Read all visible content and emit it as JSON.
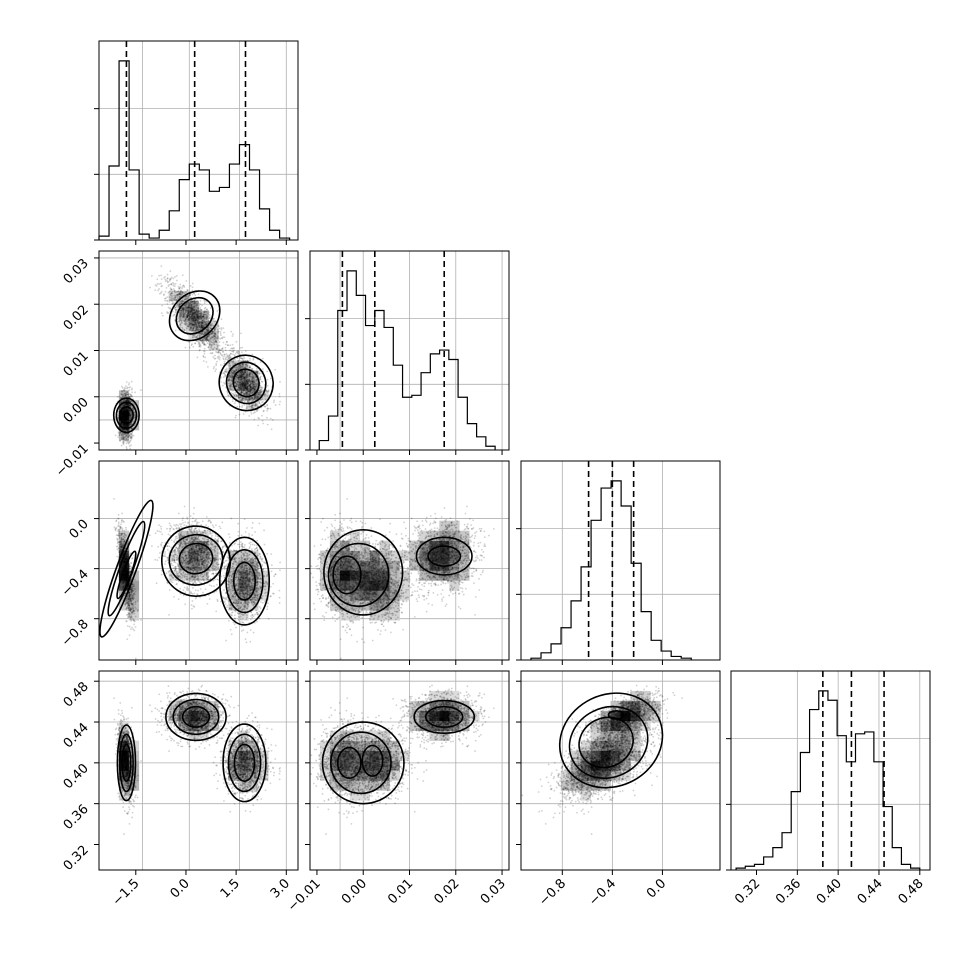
{
  "chart_data": {
    "type": "corner",
    "title": "",
    "parameters": [
      {
        "label": "",
        "range": [
          -2.6,
          3.35
        ],
        "ticks": [
          -1.5,
          0.0,
          1.5,
          3.0
        ],
        "tick_labels": [
          "−1.5",
          "0.0",
          "1.5",
          "3.0"
        ],
        "quantiles": [
          -1.78,
          0.26,
          1.78
        ],
        "histogram": {
          "bin_edges": [
            -2.6,
            -2.3,
            -2.0,
            -1.7,
            -1.4,
            -1.1,
            -0.8,
            -0.5,
            -0.2,
            0.1,
            0.4,
            0.7,
            1.0,
            1.3,
            1.6,
            1.9,
            2.2,
            2.5,
            2.8,
            3.1
          ],
          "counts": [
            0.02,
            0.38,
            0.92,
            0.36,
            0.03,
            0.01,
            0.05,
            0.15,
            0.31,
            0.39,
            0.36,
            0.25,
            0.27,
            0.39,
            0.49,
            0.36,
            0.16,
            0.05,
            0.01
          ]
        },
        "grid_at": [
          -1.3,
          0.1,
          1.6,
          3.0
        ]
      },
      {
        "label": "",
        "range": [
          -0.0115,
          0.0315
        ],
        "ticks": [
          -0.01,
          0.0,
          0.01,
          0.02,
          0.03
        ],
        "tick_labels": [
          "−0.01",
          "0.00",
          "0.01",
          "0.02",
          "0.03"
        ],
        "quantiles": [
          -0.0045,
          0.0025,
          0.0175
        ],
        "histogram": {
          "bin_edges": [
            -0.0095,
            -0.0075,
            -0.0055,
            -0.0035,
            -0.0015,
            0.0005,
            0.0025,
            0.0045,
            0.0065,
            0.0085,
            0.0105,
            0.0125,
            0.0145,
            0.0165,
            0.0185,
            0.0205,
            0.0225,
            0.0245,
            0.0265,
            0.0285
          ],
          "counts": [
            0.05,
            0.18,
            0.74,
            0.95,
            0.82,
            0.66,
            0.74,
            0.65,
            0.45,
            0.28,
            0.29,
            0.41,
            0.51,
            0.53,
            0.48,
            0.28,
            0.14,
            0.07,
            0.02
          ]
        },
        "grid_at": [
          -0.005,
          0.0,
          0.01,
          0.02,
          0.03
        ]
      },
      {
        "label": "",
        "range": [
          -1.13,
          0.46
        ],
        "ticks": [
          -0.8,
          -0.4,
          0.0
        ],
        "tick_labels": [
          "−0.8",
          "−0.4",
          "0.0"
        ],
        "quantiles": [
          -0.59,
          -0.4,
          -0.23
        ],
        "histogram": {
          "bin_edges": [
            -1.05,
            -0.97,
            -0.89,
            -0.81,
            -0.73,
            -0.65,
            -0.57,
            -0.49,
            -0.41,
            -0.33,
            -0.25,
            -0.17,
            -0.09,
            -0.01,
            0.07,
            0.15,
            0.23
          ],
          "counts": [
            0.01,
            0.04,
            0.09,
            0.18,
            0.33,
            0.52,
            0.78,
            0.96,
            1.0,
            0.86,
            0.54,
            0.27,
            0.11,
            0.05,
            0.02,
            0.01
          ]
        },
        "grid_at": [
          -0.8,
          -0.4,
          0.0
        ]
      },
      {
        "label": "",
        "range": [
          0.295,
          0.49
        ],
        "ticks": [
          0.32,
          0.36,
          0.4,
          0.44,
          0.48
        ],
        "tick_labels": [
          "0.32",
          "0.36",
          "0.40",
          "0.44",
          "0.48"
        ],
        "quantiles": [
          0.385,
          0.413,
          0.445
        ],
        "histogram": {
          "bin_edges": [
            0.3,
            0.309,
            0.318,
            0.327,
            0.336,
            0.345,
            0.354,
            0.363,
            0.372,
            0.381,
            0.39,
            0.399,
            0.408,
            0.417,
            0.426,
            0.435,
            0.444,
            0.453,
            0.462,
            0.471,
            0.48
          ],
          "counts": [
            0.01,
            0.02,
            0.03,
            0.07,
            0.12,
            0.2,
            0.42,
            0.63,
            0.86,
            0.96,
            0.91,
            0.72,
            0.58,
            0.73,
            0.74,
            0.58,
            0.34,
            0.12,
            0.03,
            0.01
          ]
        },
        "grid_at": [
          0.36,
          0.4,
          0.44,
          0.48
        ]
      }
    ],
    "modes": [
      {
        "weight": 0.3,
        "mean": [
          -1.78,
          -0.004,
          -0.45,
          0.4
        ],
        "sd": [
          0.12,
          0.0025,
          0.17,
          0.018
        ],
        "corr": {
          "0-2": -0.7,
          "2-3": 0.55
        }
      },
      {
        "weight": 0.36,
        "mean": [
          0.26,
          0.017,
          -0.3,
          0.445
        ],
        "sd": [
          0.4,
          0.0035,
          0.13,
          0.01
        ],
        "corr": {
          "0-1": -0.75,
          "2-3": 0.6
        }
      },
      {
        "weight": 0.34,
        "mean": [
          1.78,
          0.003,
          -0.5,
          0.4
        ],
        "sd": [
          0.32,
          0.003,
          0.15,
          0.015
        ],
        "corr": {
          "0-1": -0.45,
          "2-3": 0.6
        }
      }
    ],
    "panels": [
      {
        "row": 1,
        "col": 0,
        "contours": [
          {
            "cx": -1.78,
            "cy": -0.004,
            "rx": 0.2,
            "ry": 0.0018,
            "rot": 0
          },
          {
            "cx": -1.78,
            "cy": -0.004,
            "rx": 0.3,
            "ry": 0.0028,
            "rot": 0
          },
          {
            "cx": -1.78,
            "cy": -0.004,
            "rx": 0.38,
            "ry": 0.0037,
            "rot": 0
          },
          {
            "cx": 0.26,
            "cy": 0.0175,
            "rx": 0.6,
            "ry": 0.0035,
            "rot": 0.75
          },
          {
            "cx": 0.26,
            "cy": 0.0175,
            "rx": 0.82,
            "ry": 0.0048,
            "rot": 0.75
          },
          {
            "cx": 1.8,
            "cy": 0.003,
            "rx": 0.38,
            "ry": 0.003,
            "rot": 0.4
          },
          {
            "cx": 1.8,
            "cy": 0.003,
            "rx": 0.58,
            "ry": 0.0045,
            "rot": 0.4
          },
          {
            "cx": 1.8,
            "cy": 0.003,
            "rx": 0.8,
            "ry": 0.006,
            "rot": 0.4
          }
        ]
      },
      {
        "row": 2,
        "col": 0,
        "contours": [
          {
            "cx": -1.78,
            "cy": -0.45,
            "rx": 0.12,
            "ry": 0.2,
            "rot": -0.35
          },
          {
            "cx": -1.78,
            "cy": -0.4,
            "rx": 0.2,
            "ry": 0.4,
            "rot": -0.35
          },
          {
            "cx": -1.78,
            "cy": -0.4,
            "rx": 0.29,
            "ry": 0.58,
            "rot": -0.35
          },
          {
            "cx": 0.3,
            "cy": -0.32,
            "rx": 0.5,
            "ry": 0.12,
            "rot": 0.2
          },
          {
            "cx": 0.3,
            "cy": -0.33,
            "rx": 0.8,
            "ry": 0.2,
            "rot": 0.2
          },
          {
            "cx": 0.3,
            "cy": -0.34,
            "rx": 1.02,
            "ry": 0.28,
            "rot": 0.2
          },
          {
            "cx": 1.75,
            "cy": -0.5,
            "rx": 0.32,
            "ry": 0.15,
            "rot": 0
          },
          {
            "cx": 1.75,
            "cy": -0.5,
            "rx": 0.55,
            "ry": 0.25,
            "rot": 0
          },
          {
            "cx": 1.75,
            "cy": -0.5,
            "rx": 0.74,
            "ry": 0.35,
            "rot": 0
          }
        ]
      },
      {
        "row": 2,
        "col": 1,
        "contours": [
          {
            "cx": -0.0035,
            "cy": -0.45,
            "rx": 0.003,
            "ry": 0.15,
            "rot": 0
          },
          {
            "cx": -0.001,
            "cy": -0.45,
            "rx": 0.0065,
            "ry": 0.25,
            "rot": 0
          },
          {
            "cx": 0.0,
            "cy": -0.43,
            "rx": 0.0085,
            "ry": 0.34,
            "rot": 0
          },
          {
            "cx": 0.0175,
            "cy": -0.3,
            "rx": 0.0035,
            "ry": 0.08,
            "rot": 0
          },
          {
            "cx": 0.0175,
            "cy": -0.3,
            "rx": 0.006,
            "ry": 0.15,
            "rot": 0
          }
        ]
      },
      {
        "row": 3,
        "col": 0,
        "contours": [
          {
            "cx": -1.78,
            "cy": 0.4,
            "rx": 0.13,
            "ry": 0.018,
            "rot": 0
          },
          {
            "cx": -1.78,
            "cy": 0.4,
            "rx": 0.2,
            "ry": 0.028,
            "rot": 0
          },
          {
            "cx": -1.78,
            "cy": 0.4,
            "rx": 0.27,
            "ry": 0.037,
            "rot": 0
          },
          {
            "cx": 0.3,
            "cy": 0.445,
            "rx": 0.4,
            "ry": 0.01,
            "rot": 0
          },
          {
            "cx": 0.3,
            "cy": 0.445,
            "rx": 0.68,
            "ry": 0.017,
            "rot": 0
          },
          {
            "cx": 0.3,
            "cy": 0.445,
            "rx": 0.9,
            "ry": 0.023,
            "rot": 0
          },
          {
            "cx": 1.75,
            "cy": 0.4,
            "rx": 0.3,
            "ry": 0.018,
            "rot": 0
          },
          {
            "cx": 1.75,
            "cy": 0.4,
            "rx": 0.48,
            "ry": 0.028,
            "rot": 0
          },
          {
            "cx": 1.75,
            "cy": 0.4,
            "rx": 0.64,
            "ry": 0.038,
            "rot": 0
          }
        ]
      },
      {
        "row": 3,
        "col": 1,
        "contours": [
          {
            "cx": -0.003,
            "cy": 0.4,
            "rx": 0.0025,
            "ry": 0.015,
            "rot": 0
          },
          {
            "cx": 0.002,
            "cy": 0.402,
            "rx": 0.0022,
            "ry": 0.015,
            "rot": 0
          },
          {
            "cx": -0.0005,
            "cy": 0.4,
            "rx": 0.0065,
            "ry": 0.03,
            "rot": 0
          },
          {
            "cx": 0.0,
            "cy": 0.4,
            "rx": 0.0088,
            "ry": 0.04,
            "rot": 0
          },
          {
            "cx": 0.0175,
            "cy": 0.445,
            "rx": 0.004,
            "ry": 0.01,
            "rot": 0
          },
          {
            "cx": 0.0175,
            "cy": 0.445,
            "rx": 0.0065,
            "ry": 0.016,
            "rot": 0
          }
        ]
      },
      {
        "row": 3,
        "col": 2,
        "contours": [
          {
            "cx": -0.37,
            "cy": 0.447,
            "rx": 0.06,
            "ry": 0.004,
            "rot": 0
          },
          {
            "cx": -0.45,
            "cy": 0.42,
            "rx": 0.22,
            "ry": 0.024,
            "rot": 0.45
          },
          {
            "cx": -0.43,
            "cy": 0.42,
            "rx": 0.32,
            "ry": 0.034,
            "rot": 0.45
          },
          {
            "cx": -0.41,
            "cy": 0.422,
            "rx": 0.42,
            "ry": 0.045,
            "rot": 0.45
          }
        ]
      }
    ]
  }
}
